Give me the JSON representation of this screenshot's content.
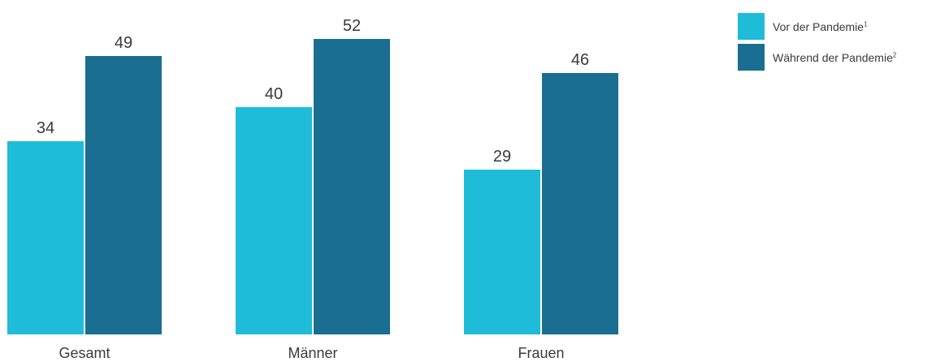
{
  "chart_data": {
    "type": "bar",
    "categories": [
      "Gesamt",
      "Männer",
      "Frauen"
    ],
    "series": [
      {
        "name": "Vor der Pandemie",
        "footnote": "1",
        "color": "#1fbcd9",
        "values": [
          34,
          40,
          29
        ]
      },
      {
        "name": "Während der Pandemie",
        "footnote": "2",
        "color": "#196e91",
        "values": [
          49,
          52,
          46
        ]
      }
    ],
    "title": "",
    "xlabel": "",
    "ylabel": "",
    "ylim": [
      0,
      52
    ],
    "grid": false,
    "legend": "top-right"
  }
}
